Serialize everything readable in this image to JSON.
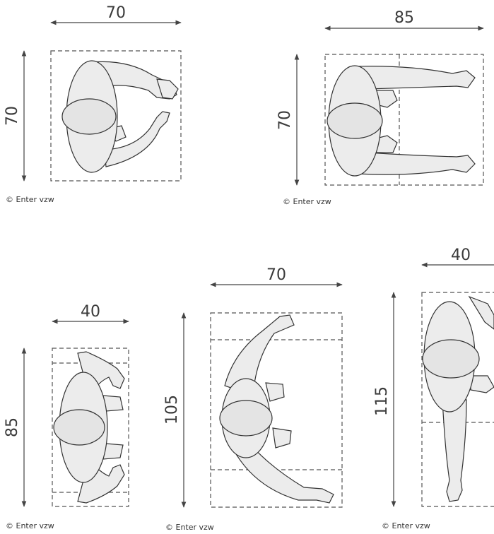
{
  "figures": [
    {
      "id": "fig1",
      "width_label": "70",
      "height_label": "70",
      "credit": "© Enter vzw"
    },
    {
      "id": "fig2",
      "width_label": "85",
      "height_label": "70",
      "credit": "© Enter vzw"
    },
    {
      "id": "fig3",
      "width_label": "40",
      "height_label": "85",
      "credit": "© Enter vzw"
    },
    {
      "id": "fig4",
      "width_label": "70",
      "height_label": "105",
      "credit": "© Enter vzw"
    },
    {
      "id": "fig5",
      "width_label": "40",
      "height_label": "115",
      "credit": "© Enter vzw"
    }
  ]
}
